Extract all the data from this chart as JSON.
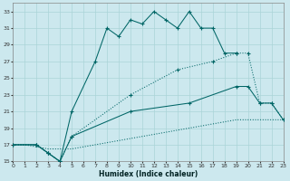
{
  "xlabel": "Humidex (Indice chaleur)",
  "bg_color": "#cce8ee",
  "grid_color": "#aad4d8",
  "line_color": "#006666",
  "xlim": [
    0,
    23
  ],
  "ylim": [
    15,
    34
  ],
  "xtick_labels": [
    "0",
    "1",
    "2",
    "3",
    "4",
    "5",
    "6",
    "7",
    "8",
    "9",
    "10",
    "11",
    "12",
    "13",
    "14",
    "15",
    "16",
    "17",
    "18",
    "19",
    "20",
    "21",
    "22",
    "23"
  ],
  "yticks": [
    15,
    17,
    19,
    21,
    23,
    25,
    27,
    29,
    31,
    33
  ],
  "line1_x": [
    0,
    2,
    3,
    4,
    5,
    7,
    8,
    9,
    10,
    11,
    12,
    13,
    14,
    15,
    16,
    17,
    18,
    19
  ],
  "line1_y": [
    17,
    17,
    16,
    15,
    21,
    27,
    31,
    30,
    32,
    31.5,
    33,
    32,
    31,
    33,
    31,
    31,
    28,
    28
  ],
  "line2_x": [
    0,
    1,
    3,
    5,
    7,
    9,
    11,
    13,
    15,
    17,
    19,
    21,
    23
  ],
  "line2_y": [
    17,
    17,
    16.5,
    16.5,
    17,
    17.5,
    18,
    18.5,
    19,
    19.5,
    20,
    20,
    20
  ],
  "line3_x": [
    0,
    2,
    3,
    4,
    5,
    10,
    15,
    19,
    20,
    21,
    22,
    23
  ],
  "line3_y": [
    17,
    17,
    16,
    15,
    18,
    21,
    22,
    24,
    24,
    22,
    22,
    20
  ],
  "line4_x": [
    0,
    2,
    3,
    4,
    5,
    10,
    14,
    17,
    19,
    20,
    21,
    22,
    23
  ],
  "line4_y": [
    17,
    17,
    16,
    15,
    18,
    23,
    26,
    27,
    28,
    28,
    22,
    22,
    20
  ]
}
